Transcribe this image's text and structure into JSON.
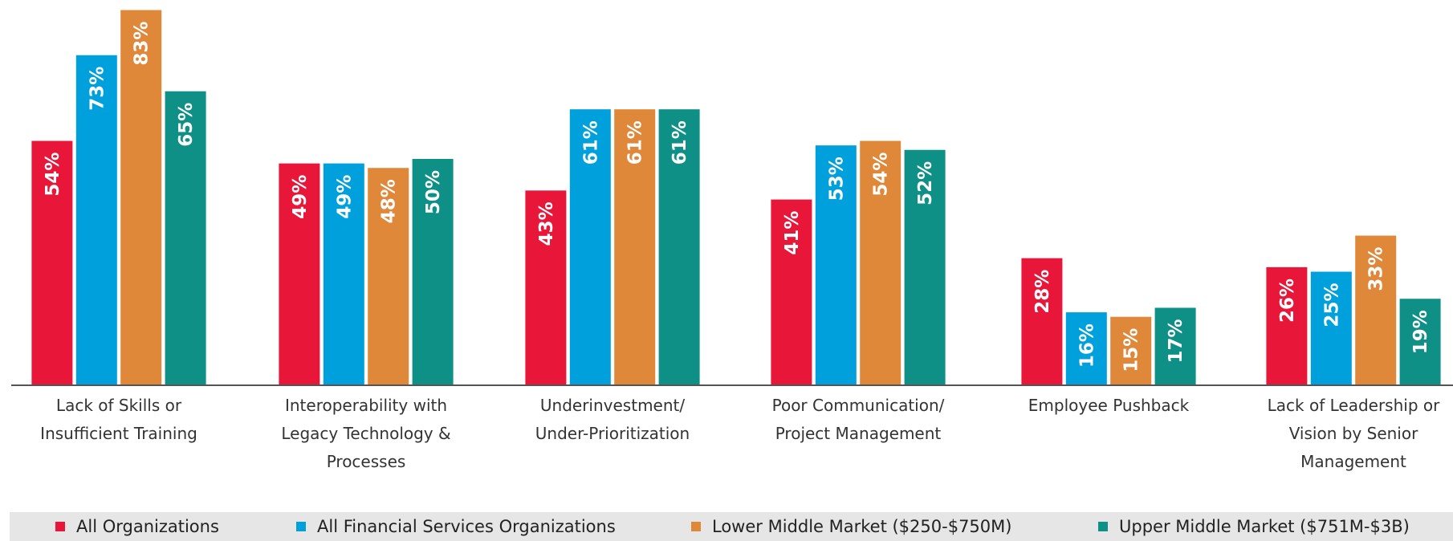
{
  "chart_data": {
    "type": "bar",
    "categories": [
      "Lack of Skills or Insufficient Training",
      "Interoperability with Legacy Technology & Processes",
      "Underinvestment/ Under-Prioritization",
      "Poor Communication/ Project Management",
      "Employee Pushback",
      "Lack of Leadership or Vision by Senior Management"
    ],
    "series": [
      {
        "name": "All Organizations",
        "color": "#e8173a",
        "values": [
          54,
          49,
          43,
          41,
          28,
          26
        ],
        "value_labels": [
          "54%",
          "49%",
          "43%",
          "41%",
          "28%",
          "26%"
        ]
      },
      {
        "name": "All Financial Services Organizations",
        "color": "#00a0dc",
        "values": [
          73,
          49,
          61,
          53,
          16,
          25
        ],
        "value_labels": [
          "73%",
          "49%",
          "61%",
          "53%",
          "16%",
          "25%"
        ]
      },
      {
        "name": "Lower Middle Market ($250-$750M)",
        "color": "#e0883a",
        "values": [
          83,
          48,
          61,
          54,
          15,
          33
        ],
        "value_labels": [
          "83%",
          "48%",
          "61%",
          "54%",
          "15%",
          "33%"
        ]
      },
      {
        "name": "Upper Middle Market ($751M-$3B)",
        "color": "#0e9087",
        "values": [
          65,
          50,
          61,
          52,
          17,
          19
        ],
        "value_labels": [
          "65%",
          "50%",
          "61%",
          "52%",
          "17%",
          "19%"
        ]
      }
    ]
  }
}
